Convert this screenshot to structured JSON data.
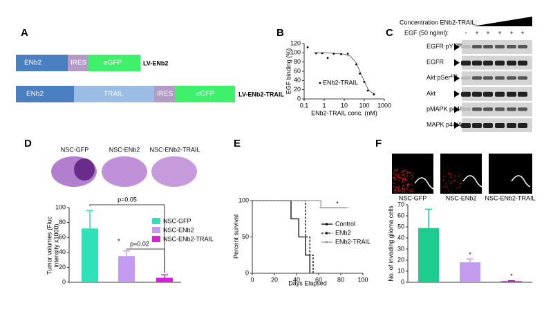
{
  "panel_a": {
    "label": "A",
    "constructs": [
      {
        "segments": [
          "ENb2",
          "IRES",
          "eGFP"
        ],
        "name": "LV-ENb2"
      },
      {
        "segments": [
          "ENb2",
          "TRAIL",
          "IRES",
          "eGFP"
        ],
        "name": "LV-ENb2-TRAIL"
      }
    ]
  },
  "panel_c": {
    "label": "C",
    "concentration_label": "Concentration ENb2-TRAIL:",
    "egf_label": "EGF (50 ng/ml):",
    "egf_signs": [
      "-",
      "+",
      "+",
      "+",
      "+",
      "+"
    ],
    "rows": [
      {
        "text": "EGFR pY",
        "sup": "1068"
      },
      {
        "text": "EGFR"
      },
      {
        "text": "Akt pSer",
        "sup": "473"
      },
      {
        "text": "Akt"
      },
      {
        "text": "pMAPK p44/42"
      },
      {
        "text": "MAPK p44/42"
      }
    ]
  },
  "chart_data": [
    {
      "type": "scatter",
      "panel": "B",
      "x_label": "ENb2-TRAIL conc. (nM)",
      "y_label": "EGF binding (%)",
      "log_x": true,
      "xlim": [
        0.1,
        1000
      ],
      "xticks": [
        0.1,
        1,
        10,
        100,
        1000
      ],
      "ylim": [
        0,
        120
      ],
      "yticks": [
        0,
        20,
        40,
        60,
        80,
        100,
        120
      ],
      "series": [
        {
          "name": "ENb2-TRAIL",
          "color": "#000000",
          "x": [
            0.15,
            0.4,
            0.8,
            1.5,
            3,
            7,
            15,
            40,
            60,
            100,
            150,
            300
          ],
          "values": [
            112,
            99,
            99,
            89,
            98,
            97,
            98,
            75,
            55,
            37,
            18,
            10
          ]
        }
      ],
      "fit": {
        "x": [
          0.3,
          1,
          3,
          10,
          20,
          40,
          60,
          100,
          150,
          200,
          300
        ],
        "values": [
          100,
          100,
          99,
          97,
          93,
          78,
          60,
          38,
          22,
          16,
          12
        ]
      }
    },
    {
      "type": "bar",
      "panel": "D",
      "y_label": [
        "Tumor volumes (Fluc",
        "intensity x1000)"
      ],
      "categories": [
        "NSC-GFP",
        "NSC-ENb2",
        "NSC-ENb2-TRAIL"
      ],
      "values": [
        72,
        35,
        6
      ],
      "errors": [
        24,
        7,
        4
      ],
      "colors": [
        "#2fe0b9",
        "#c39bef",
        "#d61fd6"
      ],
      "ylim": [
        0,
        100
      ],
      "yticks": [
        0,
        20,
        40,
        60,
        80,
        100
      ],
      "annotations": [
        "p=0.05",
        "p=0.02",
        "*"
      ],
      "legend": "right"
    },
    {
      "type": "line",
      "panel": "E",
      "x_label": "Days Elapsed",
      "y_label": "Percent survival",
      "xlim": [
        0,
        100
      ],
      "xticks": [
        0,
        20,
        40,
        60,
        80,
        100
      ],
      "ylim": [
        0,
        100
      ],
      "yticks": [
        0,
        50,
        100
      ],
      "series": [
        {
          "name": "Control",
          "color": "#000000",
          "x": [
            0,
            35,
            35,
            42,
            42,
            48,
            48,
            52,
            52
          ],
          "values": [
            100,
            100,
            75,
            75,
            50,
            50,
            25,
            25,
            0
          ]
        },
        {
          "name": "ENb2",
          "color": "#000000",
          "x": [
            0,
            48,
            48,
            52,
            52,
            55,
            55
          ],
          "values": [
            100,
            100,
            50,
            50,
            25,
            25,
            0
          ]
        },
        {
          "name": "ENb2-TRAIL",
          "color": "#999999",
          "x": [
            0,
            62,
            62,
            85
          ],
          "values": [
            100,
            100,
            90,
            90
          ]
        }
      ],
      "annotations": [
        "*"
      ]
    },
    {
      "type": "bar",
      "panel": "F",
      "y_label": [
        "No. of invading glioma cells"
      ],
      "categories": [
        "NSC-GFP",
        "NSC-ENb2",
        "NSC-ENb2-TRAIL"
      ],
      "values": [
        49,
        18,
        1
      ],
      "errors": [
        17,
        3,
        0.5
      ],
      "colors": [
        "#1fcc8f",
        "#c39bef",
        "#c01fcf"
      ],
      "ylim": [
        0,
        70
      ],
      "yticks": [
        0,
        10,
        20,
        30,
        40,
        50,
        60,
        70
      ],
      "annotations": [
        "*",
        "*"
      ]
    }
  ]
}
